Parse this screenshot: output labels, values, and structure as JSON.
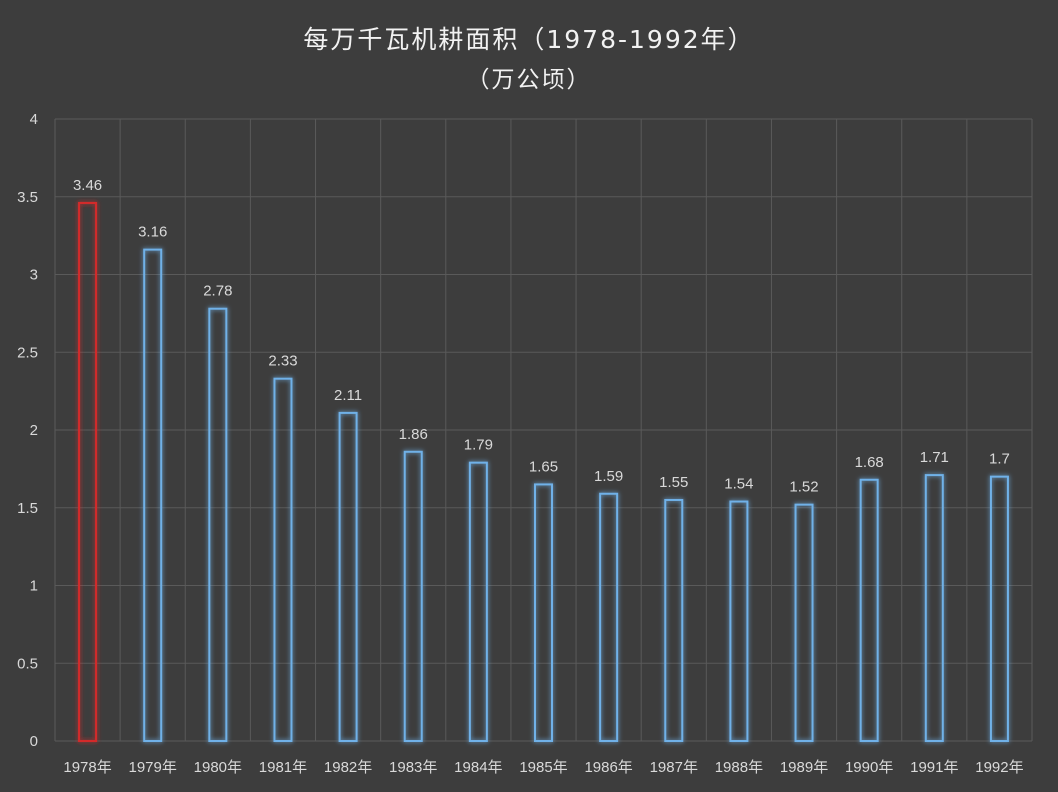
{
  "chart_data": {
    "type": "bar",
    "title": "每万千瓦机耕面积（1978-1992年）",
    "subtitle": "（万公顷）",
    "categories": [
      "1978年",
      "1979年",
      "1980年",
      "1981年",
      "1982年",
      "1983年",
      "1984年",
      "1985年",
      "1986年",
      "1987年",
      "1988年",
      "1989年",
      "1990年",
      "1991年",
      "1992年"
    ],
    "values": [
      3.46,
      3.16,
      2.78,
      2.33,
      2.11,
      1.86,
      1.79,
      1.65,
      1.59,
      1.55,
      1.54,
      1.52,
      1.68,
      1.71,
      1.7
    ],
    "value_labels": [
      "3.46",
      "3.16",
      "2.78",
      "2.33",
      "2.11",
      "1.86",
      "1.79",
      "1.65",
      "1.59",
      "1.55",
      "1.54",
      "1.52",
      "1.68",
      "1.71",
      "1.7"
    ],
    "y_ticks": [
      "0",
      "0.5",
      "1",
      "1.5",
      "2",
      "2.5",
      "3",
      "3.5",
      "4"
    ],
    "ylim": [
      0,
      4
    ],
    "grid": true,
    "highlight_index": 0,
    "colors": {
      "background": "#3d3d3d",
      "grid": "#5a5a5a",
      "bar_outline": "#6fb1e8",
      "bar_glow": "#2b78c8",
      "highlight_outline": "#d42b2b",
      "text": "#d9d9d9"
    }
  }
}
